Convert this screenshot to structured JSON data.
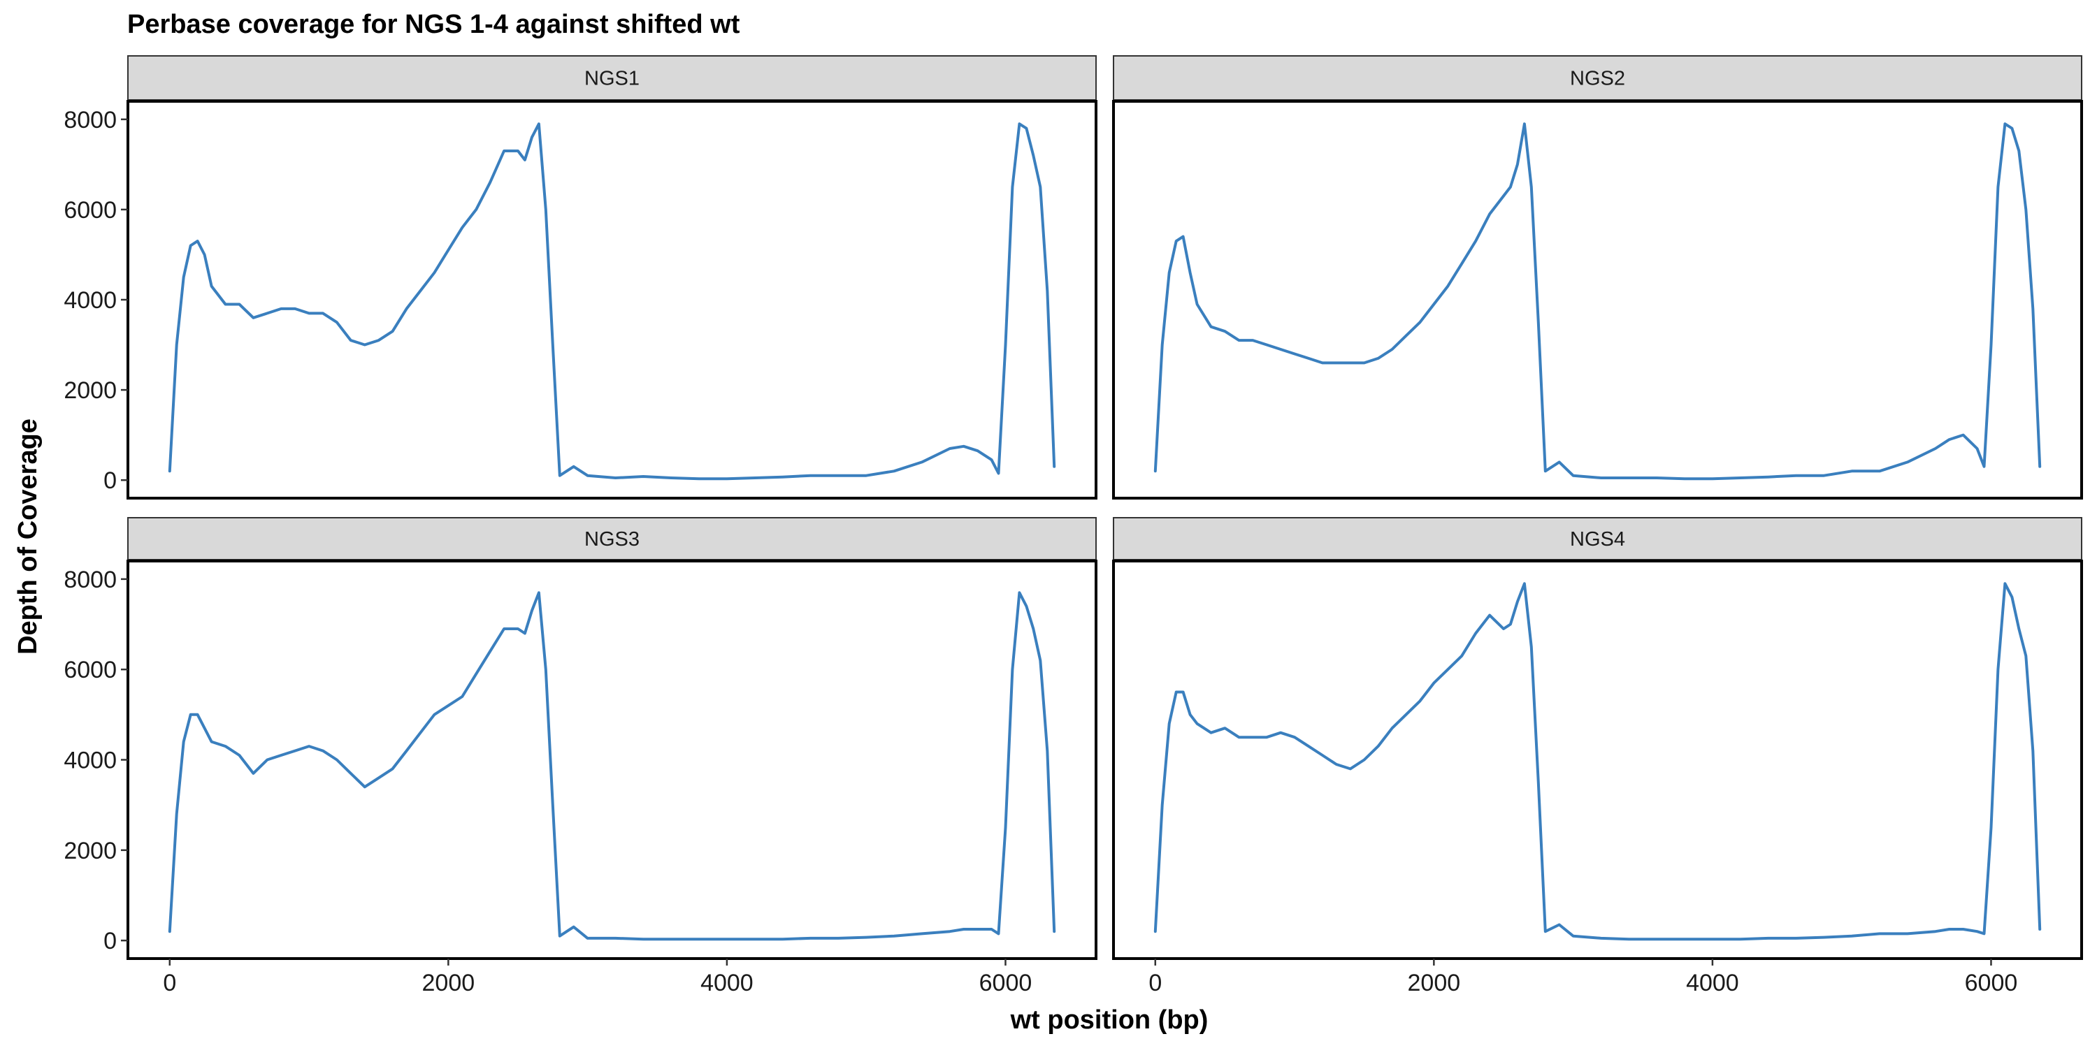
{
  "chart_data": {
    "type": "line",
    "title": "Perbase coverage for NGS 1-4 against shifted wt",
    "xlabel": "wt position (bp)",
    "ylabel": "Depth of Coverage",
    "xlim": [
      -300,
      6650
    ],
    "ylim": [
      -400,
      8400
    ],
    "x_ticks": [
      0,
      2000,
      4000,
      6000
    ],
    "y_ticks": [
      0,
      2000,
      4000,
      6000,
      8000
    ],
    "x_tick_labels": [
      "0",
      "2000",
      "4000",
      "6000"
    ],
    "y_tick_labels": [
      "0",
      "2000",
      "4000",
      "6000",
      "8000"
    ],
    "grid": false,
    "line_color": "#3a7fbe",
    "facets": [
      {
        "label": "NGS1",
        "series": [
          {
            "x": [
              0,
              50,
              100,
              150,
              200,
              250,
              300,
              400,
              500,
              600,
              700,
              800,
              900,
              1000,
              1100,
              1200,
              1300,
              1400,
              1500,
              1600,
              1700,
              1800,
              1900,
              2000,
              2100,
              2200,
              2300,
              2400,
              2500,
              2550,
              2600,
              2650,
              2700,
              2750,
              2800,
              2900,
              3000,
              3200,
              3400,
              3600,
              3800,
              4000,
              4200,
              4400,
              4600,
              4800,
              5000,
              5200,
              5400,
              5600,
              5700,
              5800,
              5900,
              5950,
              6000,
              6050,
              6100,
              6150,
              6200,
              6250,
              6300,
              6350
            ],
            "y": [
              200,
              3000,
              4500,
              5200,
              5300,
              5000,
              4300,
              3900,
              3900,
              3600,
              3700,
              3800,
              3800,
              3700,
              3700,
              3500,
              3100,
              3000,
              3100,
              3300,
              3800,
              4200,
              4600,
              5100,
              5600,
              6000,
              6600,
              7300,
              7300,
              7100,
              7600,
              7900,
              6000,
              3000,
              100,
              300,
              100,
              50,
              80,
              50,
              30,
              30,
              50,
              70,
              100,
              100,
              100,
              200,
              400,
              700,
              750,
              650,
              450,
              150,
              3000,
              6500,
              7900,
              7800,
              7200,
              6500,
              4200,
              300
            ]
          }
        ]
      },
      {
        "label": "NGS2",
        "series": [
          {
            "x": [
              0,
              50,
              100,
              150,
              200,
              250,
              300,
              400,
              500,
              600,
              700,
              800,
              900,
              1000,
              1100,
              1200,
              1300,
              1400,
              1500,
              1600,
              1700,
              1800,
              1900,
              2000,
              2100,
              2200,
              2300,
              2400,
              2500,
              2550,
              2600,
              2650,
              2700,
              2750,
              2800,
              2900,
              3000,
              3200,
              3400,
              3600,
              3800,
              4000,
              4200,
              4400,
              4600,
              4800,
              5000,
              5200,
              5400,
              5600,
              5700,
              5800,
              5900,
              5950,
              6000,
              6050,
              6100,
              6150,
              6200,
              6250,
              6300,
              6350
            ],
            "y": [
              200,
              3000,
              4600,
              5300,
              5400,
              4600,
              3900,
              3400,
              3300,
              3100,
              3100,
              3000,
              2900,
              2800,
              2700,
              2600,
              2600,
              2600,
              2600,
              2700,
              2900,
              3200,
              3500,
              3900,
              4300,
              4800,
              5300,
              5900,
              6300,
              6500,
              7000,
              7900,
              6500,
              3500,
              200,
              400,
              100,
              50,
              50,
              50,
              30,
              30,
              50,
              70,
              100,
              100,
              200,
              200,
              400,
              700,
              900,
              1000,
              700,
              300,
              3000,
              6500,
              7900,
              7800,
              7300,
              6000,
              3800,
              300
            ]
          }
        ]
      },
      {
        "label": "NGS3",
        "series": [
          {
            "x": [
              0,
              50,
              100,
              150,
              200,
              250,
              300,
              400,
              500,
              600,
              700,
              800,
              900,
              1000,
              1100,
              1200,
              1300,
              1400,
              1500,
              1600,
              1700,
              1800,
              1900,
              2000,
              2100,
              2200,
              2300,
              2400,
              2500,
              2550,
              2600,
              2650,
              2700,
              2750,
              2800,
              2900,
              3000,
              3200,
              3400,
              3600,
              3800,
              4000,
              4200,
              4400,
              4600,
              4800,
              5000,
              5200,
              5400,
              5600,
              5700,
              5800,
              5900,
              5950,
              6000,
              6050,
              6100,
              6150,
              6200,
              6250,
              6300,
              6350
            ],
            "y": [
              200,
              2800,
              4400,
              5000,
              5000,
              4700,
              4400,
              4300,
              4100,
              3700,
              4000,
              4100,
              4200,
              4300,
              4200,
              4000,
              3700,
              3400,
              3600,
              3800,
              4200,
              4600,
              5000,
              5200,
              5400,
              5900,
              6400,
              6900,
              6900,
              6800,
              7300,
              7700,
              6000,
              3000,
              100,
              300,
              50,
              50,
              30,
              30,
              30,
              30,
              30,
              30,
              50,
              50,
              70,
              100,
              150,
              200,
              250,
              250,
              250,
              150,
              2500,
              6000,
              7700,
              7400,
              6900,
              6200,
              4200,
              200
            ]
          }
        ]
      },
      {
        "label": "NGS4",
        "series": [
          {
            "x": [
              0,
              50,
              100,
              150,
              200,
              250,
              300,
              400,
              500,
              600,
              700,
              800,
              900,
              1000,
              1100,
              1200,
              1300,
              1400,
              1500,
              1600,
              1700,
              1800,
              1900,
              2000,
              2100,
              2200,
              2300,
              2400,
              2500,
              2550,
              2600,
              2650,
              2700,
              2750,
              2800,
              2900,
              3000,
              3200,
              3400,
              3600,
              3800,
              4000,
              4200,
              4400,
              4600,
              4800,
              5000,
              5200,
              5400,
              5600,
              5700,
              5800,
              5900,
              5950,
              6000,
              6050,
              6100,
              6150,
              6200,
              6250,
              6300,
              6350
            ],
            "y": [
              200,
              3000,
              4800,
              5500,
              5500,
              5000,
              4800,
              4600,
              4700,
              4500,
              4500,
              4500,
              4600,
              4500,
              4300,
              4100,
              3900,
              3800,
              4000,
              4300,
              4700,
              5000,
              5300,
              5700,
              6000,
              6300,
              6800,
              7200,
              6900,
              7000,
              7500,
              7900,
              6500,
              3500,
              200,
              350,
              100,
              50,
              30,
              30,
              30,
              30,
              30,
              50,
              50,
              70,
              100,
              150,
              150,
              200,
              250,
              250,
              200,
              150,
              2500,
              6000,
              7900,
              7600,
              6900,
              6300,
              4200,
              250
            ]
          }
        ]
      }
    ]
  }
}
